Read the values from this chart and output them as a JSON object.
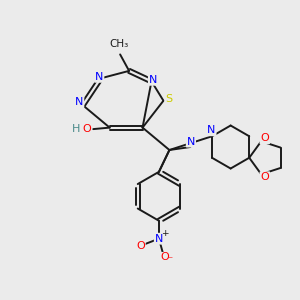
{
  "background_color": "#ebebeb",
  "bond_color": "#1a1a1a",
  "atom_colors": {
    "N": "#0000ff",
    "O": "#ff0000",
    "S": "#cccc00",
    "C": "#1a1a1a",
    "H": "#4a8a8a"
  },
  "figsize": [
    3.0,
    3.0
  ],
  "dpi": 100,
  "lw": 1.4
}
